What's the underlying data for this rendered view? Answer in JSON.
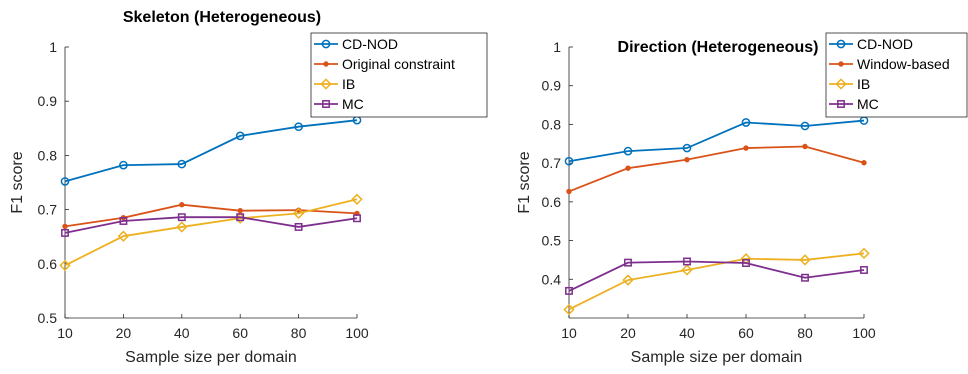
{
  "chart_data": [
    {
      "type": "line",
      "title": "Skeleton (Heterogeneous)",
      "xlabel": "Sample size per domain",
      "ylabel": "F1 score",
      "categories": [
        "10",
        "20",
        "40",
        "60",
        "80",
        "100"
      ],
      "ylim": [
        0.5,
        1
      ],
      "yticks": [
        "0.5",
        "0.6",
        "0.7",
        "0.8",
        "0.9",
        "1"
      ],
      "ytick_values": [
        0.5,
        0.6,
        0.7,
        0.8,
        0.9,
        1
      ],
      "legend_position": "top-right",
      "series": [
        {
          "name": "CD-NOD",
          "color": "#0072BD",
          "marker": "circle",
          "values": [
            0.752,
            0.782,
            0.784,
            0.836,
            0.853,
            0.865
          ]
        },
        {
          "name": "Original constraint",
          "color": "#D95319",
          "marker": "dot",
          "values": [
            0.669,
            0.685,
            0.709,
            0.698,
            0.699,
            0.693
          ]
        },
        {
          "name": "IB",
          "color": "#EDB120",
          "marker": "diamond",
          "values": [
            0.597,
            0.651,
            0.668,
            0.684,
            0.693,
            0.719
          ]
        },
        {
          "name": "MC",
          "color": "#7E2F8E",
          "marker": "square",
          "values": [
            0.657,
            0.679,
            0.686,
            0.686,
            0.668,
            0.684
          ]
        }
      ]
    },
    {
      "type": "line",
      "title": "Direction (Heterogeneous)",
      "xlabel": "Sample size per domain",
      "ylabel": "F1 score",
      "categories": [
        "10",
        "20",
        "40",
        "60",
        "80",
        "100"
      ],
      "ylim": [
        0.3,
        1
      ],
      "yticks": [
        "0.4",
        "0.5",
        "0.6",
        "0.7",
        "0.8",
        "0.9",
        "1"
      ],
      "ytick_values": [
        0.4,
        0.5,
        0.6,
        0.7,
        0.8,
        0.9,
        1
      ],
      "legend_position": "top-right",
      "series": [
        {
          "name": "CD-NOD",
          "color": "#0072BD",
          "marker": "circle",
          "values": [
            0.705,
            0.731,
            0.739,
            0.805,
            0.796,
            0.81
          ]
        },
        {
          "name": "Window-based",
          "color": "#D95319",
          "marker": "dot",
          "values": [
            0.627,
            0.687,
            0.709,
            0.739,
            0.743,
            0.701
          ]
        },
        {
          "name": "IB",
          "color": "#EDB120",
          "marker": "diamond",
          "values": [
            0.322,
            0.398,
            0.424,
            0.453,
            0.45,
            0.467
          ]
        },
        {
          "name": "MC",
          "color": "#7E2F8E",
          "marker": "square",
          "values": [
            0.37,
            0.443,
            0.446,
            0.442,
            0.404,
            0.424
          ]
        }
      ]
    }
  ]
}
